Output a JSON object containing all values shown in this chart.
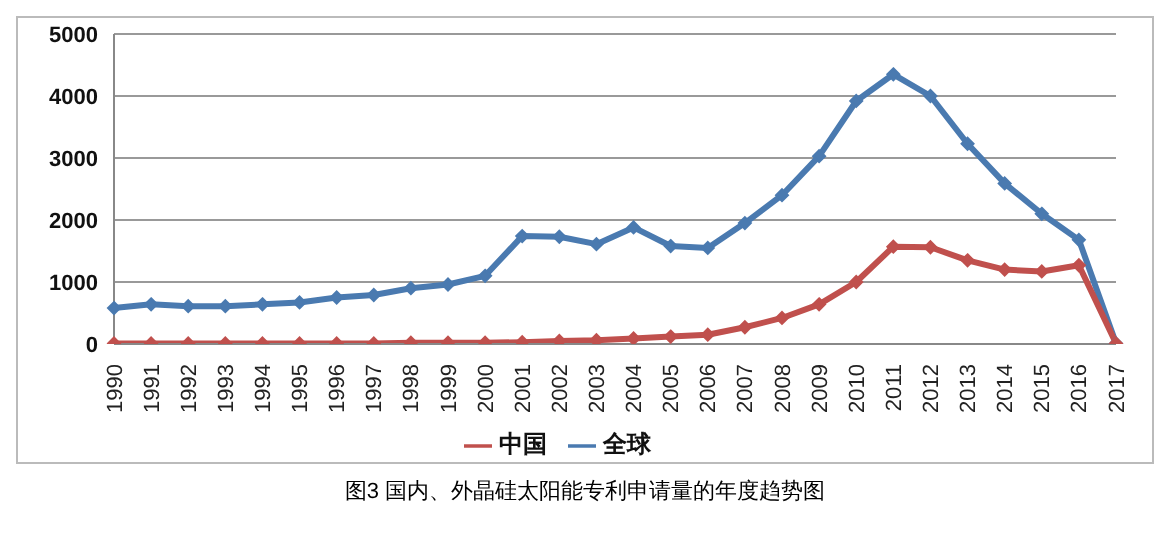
{
  "chart_data": {
    "type": "line",
    "categories": [
      "1990",
      "1991",
      "1992",
      "1993",
      "1994",
      "1995",
      "1996",
      "1997",
      "1998",
      "1999",
      "2000",
      "2001",
      "2002",
      "2003",
      "2004",
      "2005",
      "2006",
      "2007",
      "2008",
      "2009",
      "2010",
      "2011",
      "2012",
      "2013",
      "2014",
      "2015",
      "2016",
      "2017"
    ],
    "series": [
      {
        "name": "全球",
        "color": "#4a7ab0",
        "values": [
          580,
          640,
          610,
          610,
          640,
          670,
          750,
          790,
          900,
          960,
          1100,
          1740,
          1730,
          1610,
          1880,
          1580,
          1550,
          1950,
          2400,
          3030,
          3920,
          4350,
          4000,
          3230,
          2590,
          2100,
          1680,
          10
        ]
      },
      {
        "name": "中国",
        "color": "#c0504d",
        "values": [
          10,
          10,
          10,
          10,
          10,
          10,
          10,
          10,
          20,
          20,
          20,
          30,
          50,
          60,
          90,
          120,
          150,
          270,
          420,
          640,
          1000,
          1570,
          1560,
          1350,
          1200,
          1170,
          1270,
          10
        ]
      }
    ],
    "ylim": [
      0,
      5000
    ],
    "yticks": [
      0,
      1000,
      2000,
      3000,
      4000,
      5000
    ],
    "grid": "y",
    "legend": "bottom",
    "marker": "diamond",
    "line_style": "solid",
    "annotations": [
      "图3  国内、外晶硅太阳能专利申请量的年度趋势图"
    ]
  }
}
